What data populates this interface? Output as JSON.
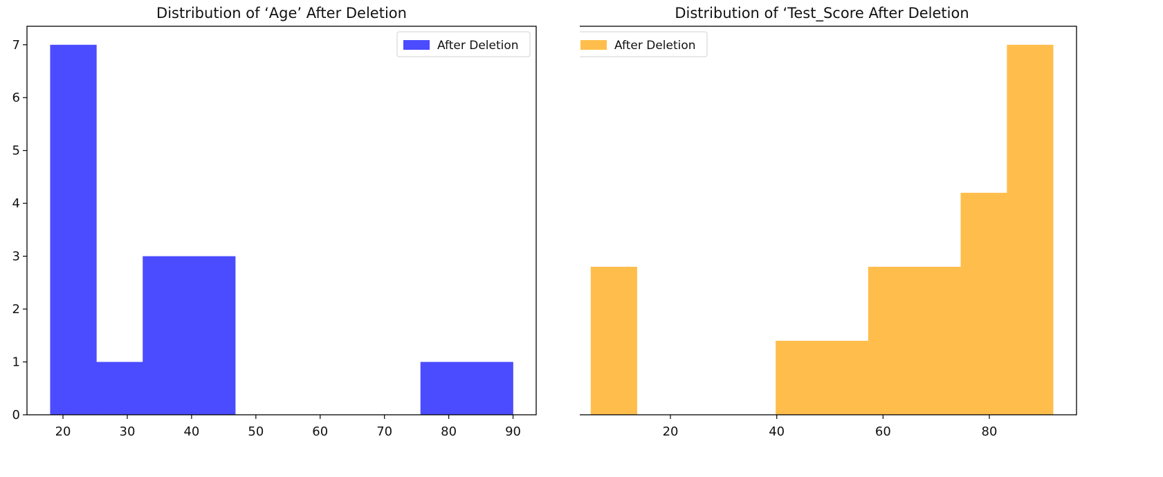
{
  "chart_data": [
    {
      "type": "bar",
      "title": "Distribution of ‘Age’ After Deletion",
      "xlabel": "",
      "ylabel": "",
      "xlim": [
        14.4,
        93.6
      ],
      "ylim": [
        0,
        7.35
      ],
      "xticks": [
        20,
        30,
        40,
        50,
        60,
        70,
        80,
        90
      ],
      "yticks": [
        0,
        1,
        2,
        3,
        4,
        5,
        6,
        7
      ],
      "grid": false,
      "legend": "top-right",
      "bin_edges": [
        18,
        25.2,
        32.4,
        39.6,
        46.8,
        54,
        61.2,
        68.4,
        75.6,
        82.8,
        90
      ],
      "series": [
        {
          "name": "After Deletion",
          "color": "#4b4bff",
          "values": [
            7,
            1,
            3,
            3,
            0,
            0,
            0,
            0,
            1,
            1
          ]
        }
      ]
    },
    {
      "type": "bar",
      "title": "Distribution of ‘Test_Score After Deletion",
      "xlabel": "",
      "ylabel": "",
      "xlim": [
        0.6,
        96.4
      ],
      "ylim": [
        0,
        5.25
      ],
      "xticks": [
        20,
        40,
        60,
        80
      ],
      "yticks": [
        0,
        1,
        2,
        3,
        4,
        5
      ],
      "grid": false,
      "legend": "top-left",
      "bin_edges": [
        5,
        13.7,
        22.4,
        31.1,
        39.8,
        48.5,
        57.2,
        65.9,
        74.6,
        83.3,
        92
      ],
      "series": [
        {
          "name": "After Deletion",
          "color": "#ffbe4c",
          "values": [
            2,
            0,
            0,
            0,
            1,
            1,
            2,
            2,
            3,
            5
          ]
        }
      ]
    }
  ]
}
